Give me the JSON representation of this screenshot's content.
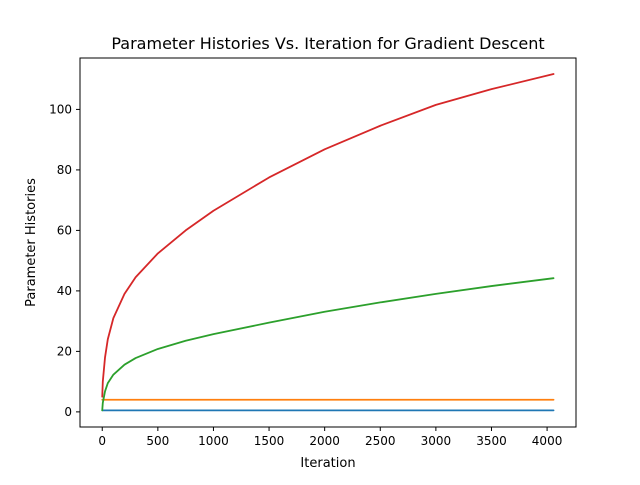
{
  "chart_data": {
    "type": "line",
    "title": "Parameter Histories Vs. Iteration for Gradient Descent",
    "xlabel": "Iteration",
    "ylabel": "Parameter Histories",
    "xlim": [
      -200,
      4260
    ],
    "ylim": [
      -5,
      117
    ],
    "grid": false,
    "legend": null,
    "xticks": [
      0,
      500,
      1000,
      1500,
      2000,
      2500,
      3000,
      3500,
      4000
    ],
    "yticks": [
      0,
      20,
      40,
      60,
      80,
      100
    ],
    "x": [
      0,
      5,
      25,
      50,
      100,
      200,
      300,
      500,
      750,
      1000,
      1500,
      2000,
      2500,
      3000,
      3500,
      4058
    ],
    "series": [
      {
        "color": "#1f77b4",
        "values": [
          0.5,
          0.5,
          0.5,
          0.5,
          0.5,
          0.5,
          0.5,
          0.5,
          0.5,
          0.5,
          0.5,
          0.5,
          0.5,
          0.5,
          0.5,
          0.5
        ]
      },
      {
        "color": "#ff7f0e",
        "values": [
          4,
          4,
          4,
          4,
          4,
          4,
          4,
          4,
          4,
          4,
          4,
          4,
          4,
          4,
          4,
          4
        ]
      },
      {
        "color": "#2ca02c",
        "values": [
          0.5,
          3,
          6.8,
          9.5,
          12.3,
          15.6,
          17.8,
          20.8,
          23.5,
          25.7,
          29.5,
          33.1,
          36.2,
          39.0,
          41.6,
          44.2
        ]
      },
      {
        "color": "#d62728",
        "values": [
          5,
          10,
          18,
          24,
          31,
          39,
          44.5,
          52.4,
          60,
          66.5,
          77.5,
          86.8,
          94.6,
          101.5,
          106.7,
          111.7
        ]
      }
    ]
  }
}
